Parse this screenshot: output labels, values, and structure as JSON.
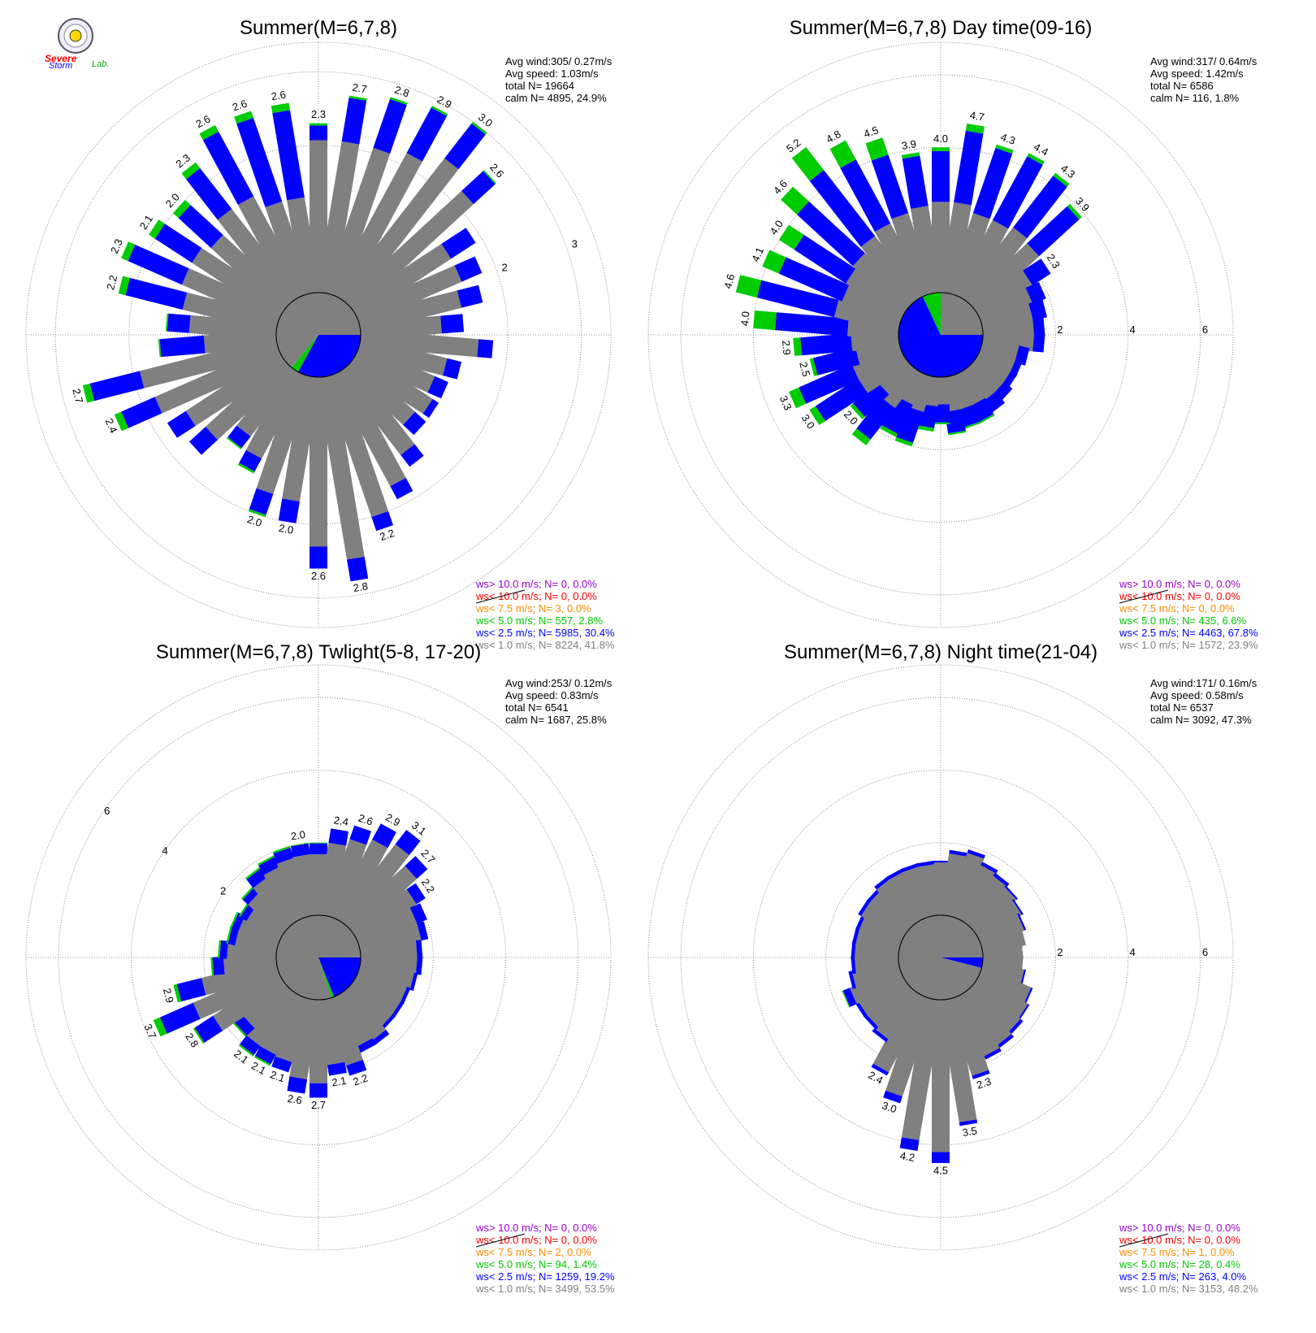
{
  "logo": {
    "word1": "Severe",
    "word2": "Storm",
    "word3": "Lab."
  },
  "colors": {
    "gray": "#808080",
    "blue": "#0000ff",
    "green": "#00cc00",
    "orange": "#ff8c00",
    "red": "#ff0000",
    "purple": "#9900cc"
  },
  "panels": [
    {
      "title": "Summer(M=6,7,8)",
      "stats": [
        "Avg wind:305/ 0.27m/s",
        "Avg speed: 1.03m/s",
        "total N=      19664",
        "calm N=   4895,  24.9%"
      ],
      "rings": [
        1,
        2,
        3
      ],
      "ring_labels": [
        "2",
        "3"
      ],
      "legend": [
        {
          "text": "ws> 10.0 m/s; N=     0,  0.0%",
          "color": "#9900cc"
        },
        {
          "text": "ws< 10.0 m/s; N=     0,  0.0%",
          "color": "#ff0000"
        },
        {
          "text": "ws<  7.5 m/s; N=     3,  0.0%",
          "color": "#ff8c00"
        },
        {
          "text": "ws<  5.0 m/s; N=   557,  2.8%",
          "color": "#00cc00"
        },
        {
          "text": "ws<  2.5 m/s; N=  5985, 30.4%",
          "color": "#0000ff"
        },
        {
          "text": "ws<  1.0 m/s; N=  8224, 41.8%",
          "color": "#808080"
        }
      ],
      "pie": [
        0.0,
        0.33,
        0.03,
        0.64
      ],
      "chart_data": {
        "type": "polar-bar",
        "directions_deg_step": 10,
        "totals": [
          2.3,
          2.7,
          2.8,
          2.9,
          3.0,
          2.6,
          1.9,
          1.8,
          1.7,
          1.4,
          1.8,
          1.4,
          1.3,
          1.3,
          1.3,
          1.6,
          1.9,
          2.2,
          2.8,
          2.6,
          2.0,
          2.0,
          1.5,
          1.3,
          1.7,
          1.8,
          2.4,
          2.7,
          1.6,
          1.5,
          2.2,
          2.3,
          2.1,
          2.0,
          2.3,
          2.6,
          2.6,
          2.6
        ],
        "blue": [
          0.2,
          0.6,
          0.7,
          0.7,
          0.6,
          0.4,
          0.4,
          0.3,
          0.3,
          0.3,
          0.2,
          0.2,
          0.2,
          0.1,
          0.2,
          0.2,
          0.2,
          0.2,
          0.3,
          0.3,
          0.3,
          0.3,
          0.2,
          0.2,
          0.3,
          0.3,
          0.5,
          0.7,
          0.6,
          0.3,
          0.8,
          0.8,
          0.6,
          0.6,
          0.7,
          1.0,
          1.2,
          1.2
        ],
        "green": [
          0.03,
          0.03,
          0.03,
          0.03,
          0.03,
          0.02,
          0.0,
          0.0,
          0.0,
          0.0,
          0.0,
          0.0,
          0.0,
          0.0,
          0.0,
          0.0,
          0.0,
          0.0,
          0.0,
          0.0,
          0.0,
          0.03,
          0.03,
          0.02,
          0.0,
          0.0,
          0.1,
          0.1,
          0.02,
          0.02,
          0.1,
          0.1,
          0.1,
          0.1,
          0.1,
          0.1,
          0.1,
          0.1
        ],
        "labels": {
          "1": "2.7",
          "2": "2.8",
          "3": "2.9",
          "4": "3.0",
          "5": "2.6",
          "17": "2.2",
          "18": "2.8",
          "19": "2.6",
          "20": "2.0",
          "21": "2.0",
          "26": "2.4",
          "27": "2.7",
          "30": "2.2",
          "31": "2.3",
          "32": "2.1",
          "33": "2.0",
          "34": "2.3",
          "35": "2.6",
          "36": "2.6",
          "37": "2.6",
          "0": "2.3",
          "38": "2.3"
        }
      }
    },
    {
      "title": "Summer(M=6,7,8) Day time(09-16)",
      "stats": [
        "Avg wind:317/ 0.64m/s",
        "Avg speed: 1.42m/s",
        "total N=       6586",
        "calm N=    116,   1.8%"
      ],
      "rings": [
        2,
        4,
        6
      ],
      "ring_labels": [
        "2",
        "4",
        "6"
      ],
      "legend": [
        {
          "text": "ws> 10.0 m/s; N=     0,  0.0%",
          "color": "#9900cc"
        },
        {
          "text": "ws< 10.0 m/s; N=     0,  0.0%",
          "color": "#ff0000"
        },
        {
          "text": "ws<  7.5 m/s; N=     0,  0.0%",
          "color": "#ff8c00"
        },
        {
          "text": "ws<  5.0 m/s; N=   435,  6.6%",
          "color": "#00cc00"
        },
        {
          "text": "ws<  2.5 m/s; N=  4463, 67.8%",
          "color": "#0000ff"
        },
        {
          "text": "ws<  1.0 m/s; N=  1572, 23.9%",
          "color": "#808080"
        }
      ],
      "pie": [
        0.0,
        0.68,
        0.07,
        0.25
      ],
      "chart_data": {
        "type": "polar-bar",
        "directions_deg_step": 10,
        "totals": [
          4.0,
          4.7,
          4.3,
          4.4,
          4.3,
          3.9,
          2.3,
          1.9,
          1.8,
          1.7,
          1.7,
          1.3,
          1.2,
          1.2,
          1.3,
          1.4,
          1.5,
          1.5,
          1.6,
          1.3,
          1.5,
          2.0,
          1.9,
          2.5,
          2.0,
          3.0,
          3.3,
          2.5,
          2.9,
          4.0,
          4.6,
          4.1,
          4.0,
          4.6,
          5.2,
          4.8,
          4.5,
          3.9
        ],
        "blue": [
          1.4,
          2.0,
          1.9,
          2.0,
          1.8,
          1.5,
          0.6,
          0.4,
          0.4,
          0.3,
          0.3,
          0.3,
          0.2,
          0.2,
          0.3,
          0.4,
          0.5,
          0.5,
          0.6,
          0.5,
          0.6,
          0.9,
          0.9,
          1.1,
          0.9,
          1.4,
          1.6,
          1.2,
          1.4,
          2.0,
          2.2,
          1.9,
          1.7,
          2.1,
          2.3,
          2.0,
          1.7,
          1.4
        ],
        "green": [
          0.1,
          0.2,
          0.1,
          0.1,
          0.1,
          0.1,
          0.0,
          0.0,
          0.0,
          0.0,
          0.0,
          0.0,
          0.0,
          0.0,
          0.0,
          0.0,
          0.05,
          0.05,
          0.05,
          0.05,
          0.1,
          0.1,
          0.1,
          0.2,
          0.1,
          0.2,
          0.3,
          0.1,
          0.2,
          0.6,
          0.6,
          0.5,
          0.5,
          0.6,
          0.8,
          0.6,
          0.5,
          0.1
        ],
        "labels": {
          "0": "4.0",
          "1": "4.7",
          "2": "4.3",
          "3": "4.4",
          "4": "4.3",
          "5": "3.9",
          "6": "2.3",
          "24": "2.0",
          "25": "3.0",
          "26": "3.3",
          "27": "2.5",
          "28": "2.9",
          "29": "4.0",
          "30": "4.6",
          "31": "4.1",
          "32": "4.0",
          "33": "4.6",
          "34": "5.2",
          "35": "4.8",
          "36": "4.5",
          "37": "3.9"
        }
      }
    },
    {
      "title": "Summer(M=6,7,8) Twlight(5-8, 17-20)",
      "stats": [
        "Avg wind:253/ 0.12m/s",
        "Avg speed: 0.83m/s",
        "total N=       6541",
        "calm N=   1687,  25.8%"
      ],
      "rings": [
        2,
        4,
        6
      ],
      "ring_labels": [
        "2",
        "4",
        "6"
      ],
      "legend": [
        {
          "text": "ws> 10.0 m/s; N=     0,  0.0%",
          "color": "#9900cc"
        },
        {
          "text": "ws< 10.0 m/s; N=     0,  0.0%",
          "color": "#ff0000"
        },
        {
          "text": "ws<  7.5 m/s; N=     2,  0.0%",
          "color": "#ff8c00"
        },
        {
          "text": "ws<  5.0 m/s; N=    94,  1.4%",
          "color": "#00cc00"
        },
        {
          "text": "ws<  2.5 m/s; N=  1259, 19.2%",
          "color": "#0000ff"
        },
        {
          "text": "ws<  1.0 m/s; N=  3499, 53.5%",
          "color": "#808080"
        }
      ],
      "pie": [
        0.0,
        0.19,
        0.01,
        0.8
      ],
      "chart_data": {
        "type": "polar-bar",
        "directions_deg_step": 10,
        "totals": [
          2.0,
          2.4,
          2.6,
          2.9,
          3.1,
          2.7,
          2.2,
          2.0,
          1.9,
          1.7,
          1.7,
          1.6,
          1.5,
          1.5,
          1.5,
          1.7,
          1.7,
          2.2,
          2.1,
          2.7,
          2.6,
          2.1,
          2.1,
          2.1,
          1.8,
          2.8,
          3.7,
          2.9,
          1.8,
          1.6,
          1.4,
          1.4,
          1.3,
          1.5,
          1.8,
          1.9,
          2.0,
          2.0
        ],
        "blue": [
          0.3,
          0.4,
          0.4,
          0.5,
          0.5,
          0.4,
          0.3,
          0.3,
          0.2,
          0.15,
          0.15,
          0.1,
          0.1,
          0.1,
          0.1,
          0.15,
          0.2,
          0.3,
          0.3,
          0.4,
          0.4,
          0.3,
          0.3,
          0.3,
          0.3,
          0.6,
          1.0,
          0.7,
          0.3,
          0.2,
          0.2,
          0.2,
          0.2,
          0.2,
          0.3,
          0.3,
          0.3,
          0.3
        ],
        "green": [
          0.02,
          0.0,
          0.0,
          0.0,
          0.0,
          0.0,
          0.0,
          0.0,
          0.0,
          0.0,
          0.0,
          0.0,
          0.0,
          0.0,
          0.0,
          0.0,
          0.0,
          0.0,
          0.0,
          0.0,
          0.0,
          0.0,
          0.05,
          0.05,
          0.05,
          0.05,
          0.2,
          0.1,
          0.05,
          0.05,
          0.05,
          0.05,
          0.05,
          0.05,
          0.05,
          0.05,
          0.05,
          0.02
        ],
        "labels": {
          "1": "2.4",
          "2": "2.6",
          "3": "2.9",
          "4": "3.1",
          "5": "2.7",
          "6": "2.2",
          "17": "2.2",
          "18": "2.1",
          "19": "2.7",
          "20": "2.6",
          "21": "2.1",
          "22": "2.1",
          "23": "2.1",
          "25": "2.8",
          "26": "3.7",
          "27": "2.9",
          "37": "2.0"
        }
      }
    },
    {
      "title": "Summer(M=6,7,8) Night time(21-04)",
      "stats": [
        "Avg wind:171/ 0.16m/s",
        "Avg speed: 0.58m/s",
        "total N=       6537",
        "calm N=   3092,  47.3%"
      ],
      "rings": [
        2,
        4,
        6
      ],
      "ring_labels": [
        "2",
        "4",
        "6"
      ],
      "legend": [
        {
          "text": "ws> 10.0 m/s; N=     0,  0.0%",
          "color": "#9900cc"
        },
        {
          "text": "ws< 10.0 m/s; N=     0,  0.0%",
          "color": "#ff0000"
        },
        {
          "text": "ws<  7.5 m/s; N=     1,  0.0%",
          "color": "#ff8c00"
        },
        {
          "text": "ws<  5.0 m/s; N=    28,  0.4%",
          "color": "#00cc00"
        },
        {
          "text": "ws<  2.5 m/s; N=   263,  4.0%",
          "color": "#0000ff"
        },
        {
          "text": "ws<  1.0 m/s; N=  3153, 48.2%",
          "color": "#808080"
        }
      ],
      "pie": [
        0.0,
        0.04,
        0.0,
        0.96
      ],
      "chart_data": {
        "type": "polar-bar",
        "directions_deg_step": 10,
        "totals": [
          1.5,
          1.8,
          1.9,
          1.7,
          1.6,
          1.5,
          1.4,
          1.3,
          1.2,
          1.1,
          1.1,
          1.2,
          1.5,
          1.6,
          1.7,
          1.8,
          1.9,
          2.3,
          3.5,
          4.5,
          4.2,
          3.0,
          2.4,
          1.6,
          1.5,
          1.5,
          1.7,
          1.4,
          1.3,
          1.3,
          1.3,
          1.3,
          1.4,
          1.4,
          1.5,
          1.5,
          1.5,
          1.5
        ],
        "blue": [
          0.05,
          0.1,
          0.1,
          0.1,
          0.1,
          0.05,
          0.05,
          0.05,
          0.0,
          0.0,
          0.0,
          0.05,
          0.05,
          0.05,
          0.1,
          0.1,
          0.1,
          0.1,
          0.1,
          0.3,
          0.3,
          0.2,
          0.1,
          0.1,
          0.1,
          0.1,
          0.2,
          0.1,
          0.1,
          0.1,
          0.1,
          0.1,
          0.1,
          0.1,
          0.1,
          0.1,
          0.1,
          0.1
        ],
        "green": [
          0,
          0,
          0,
          0,
          0,
          0,
          0,
          0,
          0,
          0,
          0,
          0,
          0,
          0,
          0,
          0,
          0,
          0,
          0,
          0,
          0,
          0,
          0,
          0,
          0,
          0,
          0.03,
          0,
          0,
          0,
          0,
          0,
          0,
          0,
          0,
          0,
          0,
          0
        ],
        "labels": {
          "17": "2.3",
          "18": "3.5",
          "19": "4.5",
          "20": "4.2",
          "21": "3.0",
          "22": "2.4"
        }
      }
    }
  ]
}
